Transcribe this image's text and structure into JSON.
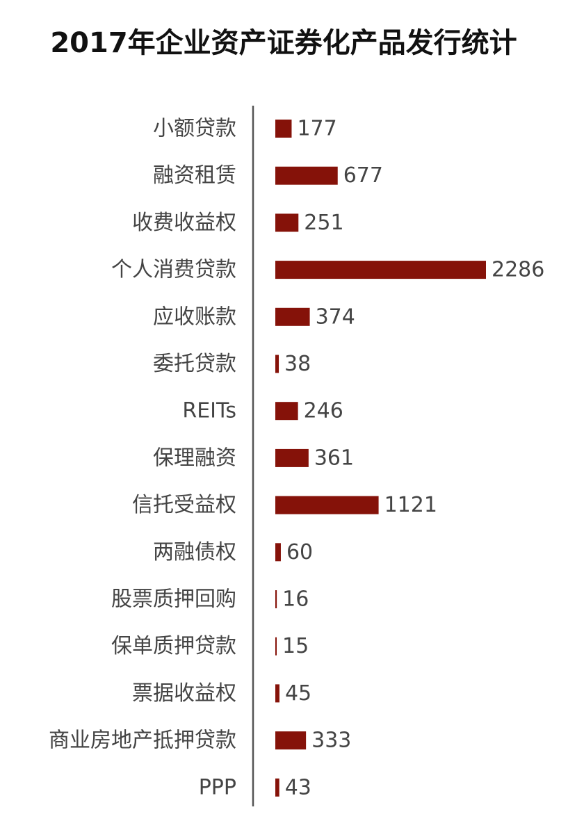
{
  "chart_data": {
    "type": "bar",
    "orientation": "horizontal",
    "title": "2017年企业资产证券化产品发行统计",
    "categories": [
      "小额贷款",
      "融资租赁",
      "收费收益权",
      "个人消费贷款",
      "应收账款",
      "委托贷款",
      "REITs",
      "保理融资",
      "信托受益权",
      "两融债权",
      "股票质押回购",
      "保单质押贷款",
      "票据收益权",
      "商业房地产抵押贷款",
      "PPP"
    ],
    "values": [
      177,
      677,
      251,
      2286,
      374,
      38,
      246,
      361,
      1121,
      60,
      16,
      15,
      45,
      333,
      43
    ],
    "color": "#851209"
  }
}
